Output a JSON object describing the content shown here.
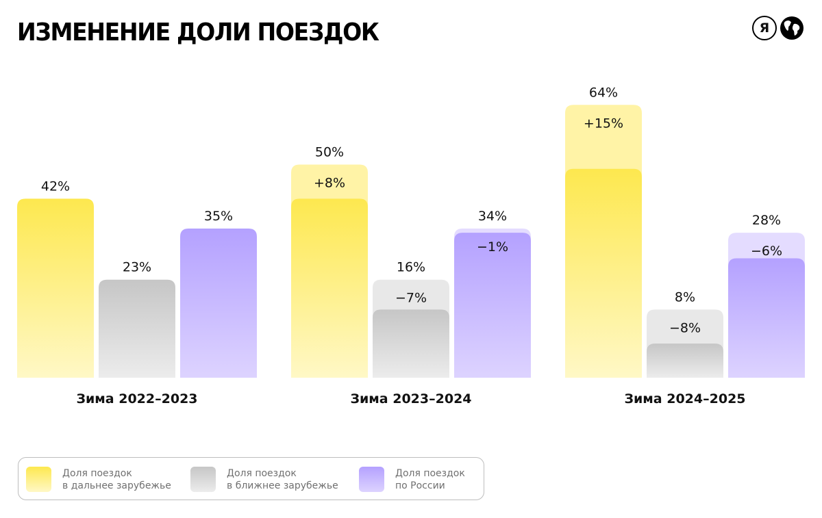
{
  "title": "ИЗМЕНЕНИЕ ДОЛИ ПОЕЗДОК",
  "logos": {
    "ya_letter": "Я",
    "icons": [
      "yandex-logo-icon",
      "globe-icon"
    ]
  },
  "colors": {
    "far_abroad_top": "#fde84f",
    "far_abroad_bottom": "#fff8c6",
    "far_abroad_delta": "#fff3a6",
    "near_abroad_top": "#c6c6c6",
    "near_abroad_bottom": "#ececec",
    "near_abroad_delta": "#e8e8e8",
    "russia_top": "#b4a1ff",
    "russia_bottom": "#ddd3ff",
    "russia_delta": "#e4dcff"
  },
  "chart_data": {
    "type": "bar",
    "categories": [
      "Зима 2022–2023",
      "Зима 2023–2024",
      "Зима 2024–2025"
    ],
    "series": [
      {
        "name": "Доля поездок в дальнее зарубежье",
        "values": [
          42,
          50,
          64
        ],
        "labels": [
          "42%",
          "50%",
          "64%"
        ],
        "changes": [
          null,
          8,
          15
        ],
        "change_labels": [
          "",
          "+8%",
          "+15%"
        ]
      },
      {
        "name": "Доля поездок в ближнее зарубежье",
        "values": [
          23,
          16,
          8
        ],
        "labels": [
          "23%",
          "16%",
          "8%"
        ],
        "changes": [
          null,
          -7,
          -8
        ],
        "change_labels": [
          "",
          "−7%",
          "−8%"
        ]
      },
      {
        "name": "Доля поездок по России",
        "values": [
          35,
          34,
          28
        ],
        "labels": [
          "35%",
          "34%",
          "28%"
        ],
        "changes": [
          null,
          -1,
          -6
        ],
        "change_labels": [
          "",
          "−1%",
          "−6%"
        ]
      }
    ],
    "ylim": [
      0,
      64
    ],
    "grid": false,
    "legend_position": "bottom-left"
  },
  "legend": {
    "items": [
      {
        "label": "Доля поездок\nв дальнее зарубежье",
        "color_key": "far_abroad"
      },
      {
        "label": "Доля поездок\nв ближнее зарубежье",
        "color_key": "near_abroad"
      },
      {
        "label": "Доля поездок\nпо России",
        "color_key": "russia"
      }
    ]
  }
}
